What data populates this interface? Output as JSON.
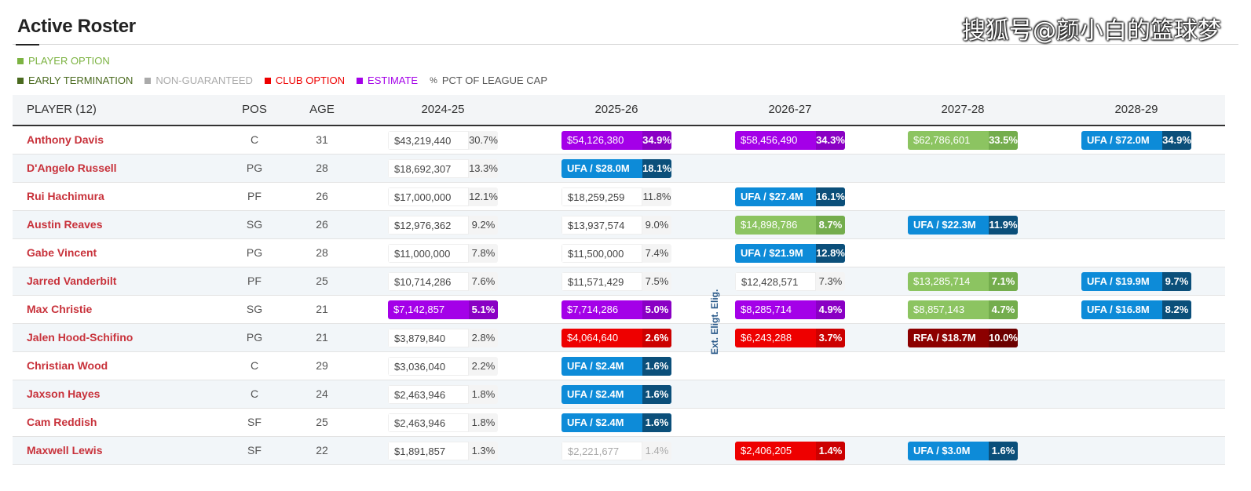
{
  "header": {
    "title": "Active Roster",
    "watermark": "搜狐号@颜小白的篮球梦"
  },
  "legend": {
    "row1": [
      {
        "label": "PLAYER OPTION",
        "color": "#7cb342"
      }
    ],
    "row2": [
      {
        "label": "EARLY TERMINATION",
        "color": "#4a6a1f"
      },
      {
        "label": "NON-GUARANTEED",
        "color": "#aaaaaa"
      },
      {
        "label": "CLUB OPTION",
        "color": "#ee0000"
      },
      {
        "label": "ESTIMATE",
        "color": "#a400e8"
      },
      {
        "label": "PCT OF LEAGUE CAP",
        "color": "#555555",
        "icon": "percent-icon"
      }
    ]
  },
  "table": {
    "columns": {
      "player": "PLAYER (12)",
      "pos": "POS",
      "age": "AGE",
      "years": [
        "2024-25",
        "2025-26",
        "2026-27",
        "2027-28",
        "2028-29"
      ]
    },
    "annotation": "Ext. Eligt. Elig.",
    "rows": [
      {
        "name": "Anthony Davis",
        "pos": "C",
        "age": "31",
        "cells": [
          {
            "type": "guaranteed",
            "amount": "$43,219,440",
            "pct": "30.7%"
          },
          {
            "type": "estimate",
            "amount": "$54,126,380",
            "pct": "34.9%"
          },
          {
            "type": "estimate",
            "amount": "$58,456,490",
            "pct": "34.3%"
          },
          {
            "type": "player",
            "amount": "$62,786,601",
            "pct": "33.5%"
          },
          {
            "type": "ufa",
            "amount": "UFA / $72.0M",
            "pct": "34.9%"
          }
        ]
      },
      {
        "name": "D'Angelo Russell",
        "pos": "PG",
        "age": "28",
        "cells": [
          {
            "type": "guaranteed",
            "amount": "$18,692,307",
            "pct": "13.3%"
          },
          {
            "type": "ufa",
            "amount": "UFA / $28.0M",
            "pct": "18.1%"
          },
          null,
          null,
          null
        ]
      },
      {
        "name": "Rui Hachimura",
        "pos": "PF",
        "age": "26",
        "cells": [
          {
            "type": "guaranteed",
            "amount": "$17,000,000",
            "pct": "12.1%"
          },
          {
            "type": "guaranteed",
            "amount": "$18,259,259",
            "pct": "11.8%"
          },
          {
            "type": "ufa",
            "amount": "UFA / $27.4M",
            "pct": "16.1%"
          },
          null,
          null
        ]
      },
      {
        "name": "Austin Reaves",
        "pos": "SG",
        "age": "26",
        "cells": [
          {
            "type": "guaranteed",
            "amount": "$12,976,362",
            "pct": "9.2%"
          },
          {
            "type": "guaranteed",
            "amount": "$13,937,574",
            "pct": "9.0%"
          },
          {
            "type": "player",
            "amount": "$14,898,786",
            "pct": "8.7%"
          },
          {
            "type": "ufa",
            "amount": "UFA / $22.3M",
            "pct": "11.9%"
          },
          null
        ]
      },
      {
        "name": "Gabe Vincent",
        "pos": "PG",
        "age": "28",
        "cells": [
          {
            "type": "guaranteed",
            "amount": "$11,000,000",
            "pct": "7.8%"
          },
          {
            "type": "guaranteed",
            "amount": "$11,500,000",
            "pct": "7.4%"
          },
          {
            "type": "ufa",
            "amount": "UFA / $21.9M",
            "pct": "12.8%"
          },
          null,
          null
        ]
      },
      {
        "name": "Jarred Vanderbilt",
        "pos": "PF",
        "age": "25",
        "cells": [
          {
            "type": "guaranteed",
            "amount": "$10,714,286",
            "pct": "7.6%"
          },
          {
            "type": "guaranteed",
            "amount": "$11,571,429",
            "pct": "7.5%"
          },
          {
            "type": "guaranteed",
            "amount": "$12,428,571",
            "pct": "7.3%"
          },
          {
            "type": "player",
            "amount": "$13,285,714",
            "pct": "7.1%"
          },
          {
            "type": "ufa",
            "amount": "UFA / $19.9M",
            "pct": "9.7%"
          }
        ]
      },
      {
        "name": "Max Christie",
        "pos": "SG",
        "age": "21",
        "cells": [
          {
            "type": "estimate",
            "amount": "$7,142,857",
            "pct": "5.1%"
          },
          {
            "type": "estimate",
            "amount": "$7,714,286",
            "pct": "5.0%"
          },
          {
            "type": "estimate",
            "amount": "$8,285,714",
            "pct": "4.9%"
          },
          {
            "type": "player",
            "amount": "$8,857,143",
            "pct": "4.7%"
          },
          {
            "type": "ufa",
            "amount": "UFA / $16.8M",
            "pct": "8.2%"
          }
        ]
      },
      {
        "name": "Jalen Hood-Schifino",
        "pos": "PG",
        "age": "21",
        "cells": [
          {
            "type": "guaranteed",
            "amount": "$3,879,840",
            "pct": "2.8%"
          },
          {
            "type": "club",
            "amount": "$4,064,640",
            "pct": "2.6%"
          },
          {
            "type": "club",
            "amount": "$6,243,288",
            "pct": "3.7%"
          },
          {
            "type": "rfa",
            "amount": "RFA / $18.7M",
            "pct": "10.0%"
          },
          null
        ]
      },
      {
        "name": "Christian Wood",
        "pos": "C",
        "age": "29",
        "cells": [
          {
            "type": "guaranteed",
            "amount": "$3,036,040",
            "pct": "2.2%"
          },
          {
            "type": "ufa",
            "amount": "UFA / $2.4M",
            "pct": "1.6%"
          },
          null,
          null,
          null
        ]
      },
      {
        "name": "Jaxson Hayes",
        "pos": "C",
        "age": "24",
        "cells": [
          {
            "type": "guaranteed",
            "amount": "$2,463,946",
            "pct": "1.8%"
          },
          {
            "type": "ufa",
            "amount": "UFA / $2.4M",
            "pct": "1.6%"
          },
          null,
          null,
          null
        ]
      },
      {
        "name": "Cam Reddish",
        "pos": "SF",
        "age": "25",
        "cells": [
          {
            "type": "guaranteed",
            "amount": "$2,463,946",
            "pct": "1.8%"
          },
          {
            "type": "ufa",
            "amount": "UFA / $2.4M",
            "pct": "1.6%"
          },
          null,
          null,
          null
        ]
      },
      {
        "name": "Maxwell Lewis",
        "pos": "SF",
        "age": "22",
        "cells": [
          {
            "type": "guaranteed",
            "amount": "$1,891,857",
            "pct": "1.3%"
          },
          {
            "type": "guaranteed faded",
            "amount": "$2,221,677",
            "pct": "1.4%"
          },
          {
            "type": "club",
            "amount": "$2,406,205",
            "pct": "1.4%"
          },
          {
            "type": "ufa",
            "amount": "UFA / $3.0M",
            "pct": "1.6%"
          },
          null
        ]
      }
    ]
  }
}
